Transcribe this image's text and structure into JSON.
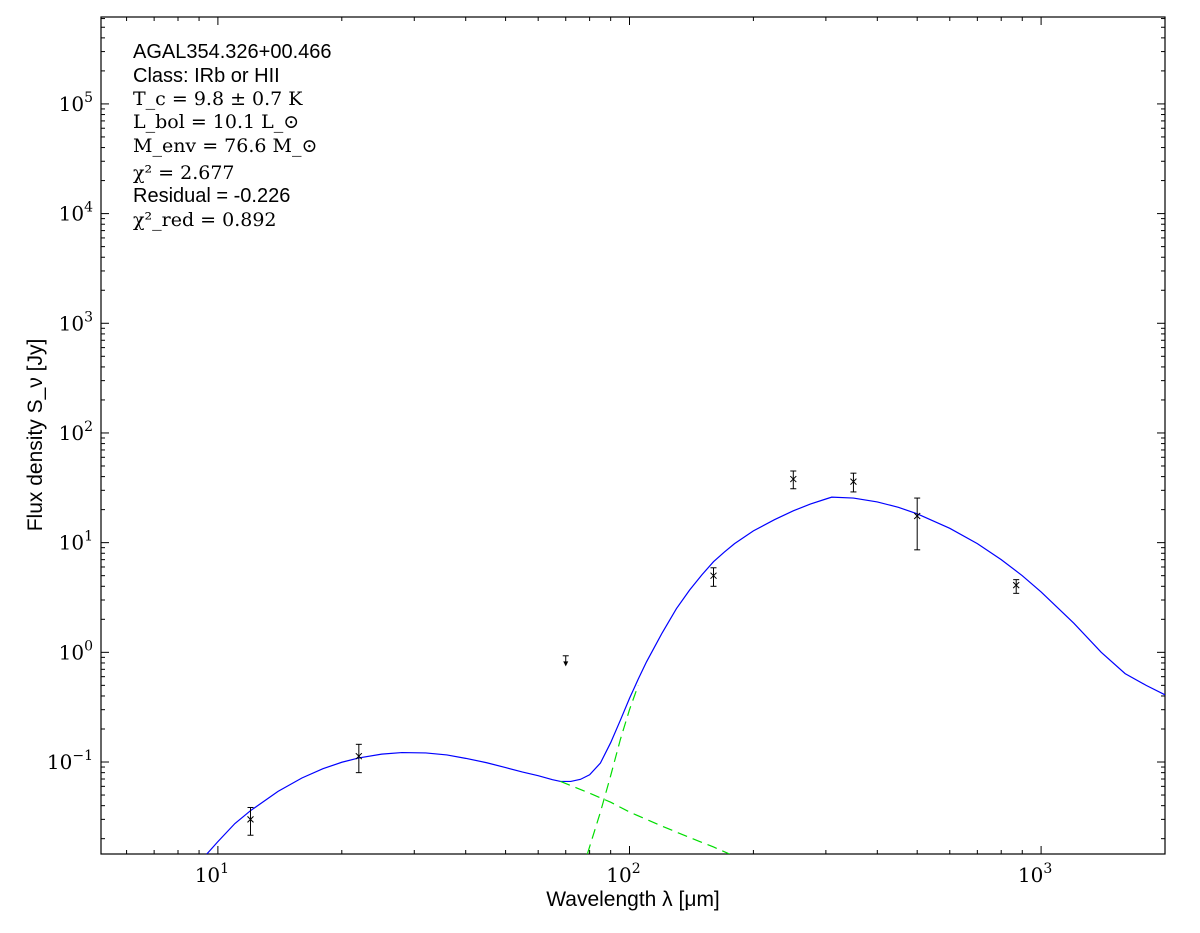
{
  "chart_data": {
    "type": "scatter",
    "title": "",
    "xlabel": "Wavelength λ [μm]",
    "ylabel": "Flux density S_ν [Jy]",
    "xscale": "log",
    "yscale": "log",
    "xlim": [
      5.2,
      2000
    ],
    "ylim": [
      0.0145,
      620000
    ],
    "x_ticks": [
      {
        "value": 10,
        "label": "10",
        "exp": "1"
      },
      {
        "value": 100,
        "label": "10",
        "exp": "2"
      },
      {
        "value": 1000,
        "label": "10",
        "exp": "3"
      }
    ],
    "y_ticks": [
      {
        "value": 0.1,
        "label": "10",
        "exp": "−1"
      },
      {
        "value": 1,
        "label": "10",
        "exp": "0"
      },
      {
        "value": 10,
        "label": "10",
        "exp": "1"
      },
      {
        "value": 100,
        "label": "10",
        "exp": "2"
      },
      {
        "value": 1000,
        "label": "10",
        "exp": "3"
      },
      {
        "value": 10000,
        "label": "10",
        "exp": "4"
      },
      {
        "value": 100000,
        "label": "10",
        "exp": "5"
      }
    ],
    "grid": false,
    "annotations": {
      "source": "AGAL354.326+00.466",
      "class_line": "Class: IRb or HII",
      "tc": "T_c = 9.8 ± 0.7 K",
      "lbol": "L_bol = 10.1 L_⊙",
      "menv": "M_env = 76.6 M_⊙",
      "chi2": "χ² = 2.677",
      "residual": "Residual = -0.226",
      "chi2red": "χ²_red = 0.892"
    },
    "measurements": [
      {
        "x": 12,
        "y": 0.03,
        "err_low": 0.0215,
        "err_high": 0.0385
      },
      {
        "x": 22,
        "y": 0.113,
        "err_low": 0.08,
        "err_high": 0.145
      },
      {
        "x": 160,
        "y": 5.0,
        "err_low": 4.0,
        "err_high": 5.9
      },
      {
        "x": 250,
        "y": 38,
        "err_low": 31,
        "err_high": 45
      },
      {
        "x": 350,
        "y": 36,
        "err_low": 29,
        "err_high": 43
      },
      {
        "x": 500,
        "y": 17.5,
        "err_low": 8.6,
        "err_high": 25.5
      },
      {
        "x": 870,
        "y": 4.1,
        "err_low": 3.45,
        "err_high": 4.6
      }
    ],
    "upper_limits": [
      {
        "x": 70,
        "y": 0.93,
        "arrow_to": 0.76
      }
    ],
    "series": [
      {
        "role": "total model",
        "color": "#0000ff",
        "dash": "solid",
        "points": [
          [
            9.4,
            0.0145
          ],
          [
            10,
            0.0188
          ],
          [
            11,
            0.0275
          ],
          [
            12,
            0.036
          ],
          [
            14,
            0.054
          ],
          [
            16,
            0.0715
          ],
          [
            18,
            0.087
          ],
          [
            20,
            0.0995
          ],
          [
            22,
            0.109
          ],
          [
            25,
            0.118
          ],
          [
            28,
            0.122
          ],
          [
            32,
            0.121
          ],
          [
            36,
            0.116
          ],
          [
            40,
            0.108
          ],
          [
            45,
            0.0985
          ],
          [
            50,
            0.089
          ],
          [
            55,
            0.081
          ],
          [
            60,
            0.075
          ],
          [
            65,
            0.069
          ],
          [
            68,
            0.0665
          ],
          [
            72,
            0.0665
          ],
          [
            76,
            0.0695
          ],
          [
            80,
            0.0765
          ],
          [
            85,
            0.098
          ],
          [
            90,
            0.15
          ],
          [
            95,
            0.24
          ],
          [
            100,
            0.38
          ],
          [
            105,
            0.57
          ],
          [
            110,
            0.82
          ],
          [
            120,
            1.5
          ],
          [
            130,
            2.5
          ],
          [
            140,
            3.7
          ],
          [
            150,
            5.1
          ],
          [
            160,
            6.7
          ],
          [
            170,
            8.2
          ],
          [
            180,
            9.8
          ],
          [
            200,
            12.8
          ],
          [
            225,
            16.2
          ],
          [
            250,
            19.5
          ],
          [
            275,
            22.5
          ],
          [
            300,
            25.0
          ],
          [
            310,
            26.0
          ],
          [
            350,
            25.5
          ],
          [
            400,
            23.5
          ],
          [
            450,
            21.0
          ],
          [
            500,
            18.3
          ],
          [
            600,
            13.5
          ],
          [
            700,
            9.8
          ],
          [
            800,
            7.0
          ],
          [
            900,
            5.0
          ],
          [
            1000,
            3.55
          ],
          [
            1200,
            1.85
          ],
          [
            1400,
            1.0
          ],
          [
            1600,
            0.64
          ],
          [
            1800,
            0.5
          ],
          [
            2000,
            0.41
          ]
        ]
      },
      {
        "role": "warm component",
        "color": "#00dd00",
        "dash": "dashed",
        "points": [
          [
            68,
            0.0665
          ],
          [
            80,
            0.052
          ],
          [
            90,
            0.043
          ],
          [
            100,
            0.035
          ],
          [
            120,
            0.026
          ],
          [
            140,
            0.0205
          ],
          [
            160,
            0.0168
          ],
          [
            175,
            0.0145
          ]
        ]
      },
      {
        "role": "cold component",
        "color": "#00dd00",
        "dash": "dashed",
        "points": [
          [
            79,
            0.0145
          ],
          [
            85,
            0.035
          ],
          [
            90,
            0.075
          ],
          [
            95,
            0.16
          ],
          [
            100,
            0.3
          ],
          [
            105,
            0.5
          ]
        ]
      }
    ]
  }
}
